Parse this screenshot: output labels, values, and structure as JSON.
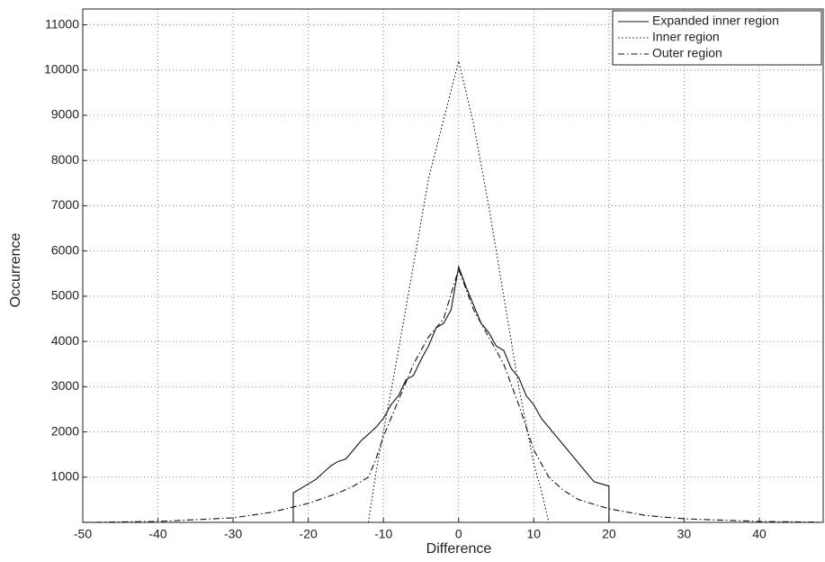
{
  "chart_data": {
    "type": "line",
    "x_label": "Difference",
    "y_label": "Occurrence",
    "xlim": [
      -50,
      48.5
    ],
    "ylim": [
      0,
      11350
    ],
    "xticks": [
      -50,
      -40,
      -30,
      -20,
      -10,
      0,
      10,
      20,
      30,
      40
    ],
    "yticks": [
      1000,
      2000,
      3000,
      4000,
      5000,
      6000,
      7000,
      8000,
      9000,
      10000,
      11000
    ],
    "grid": true,
    "legend": "upper right",
    "series": [
      {
        "name": "Expanded inner region",
        "color": "#111111",
        "linestyle": "solid",
        "x": [
          -22,
          -22,
          -21,
          -20,
          -19,
          -18,
          -17,
          -16,
          -15,
          -14,
          -13,
          -12,
          -11,
          -10,
          -9,
          -8,
          -7,
          -6,
          -5,
          -4,
          -3,
          -2,
          -1,
          0,
          1,
          2,
          3,
          4,
          5,
          6,
          7,
          8,
          9,
          10,
          11,
          12,
          13,
          14,
          15,
          16,
          17,
          18,
          19,
          20,
          20
        ],
        "values": [
          0,
          650,
          750,
          850,
          950,
          1100,
          1250,
          1350,
          1400,
          1600,
          1800,
          1950,
          2100,
          2300,
          2600,
          2800,
          3150,
          3250,
          3600,
          3900,
          4300,
          4400,
          4700,
          5650,
          5200,
          4800,
          4400,
          4200,
          3900,
          3800,
          3400,
          3200,
          2800,
          2600,
          2300,
          2100,
          1900,
          1700,
          1500,
          1300,
          1100,
          900,
          850,
          800,
          0
        ]
      },
      {
        "name": "Inner region",
        "color": "#111111",
        "linestyle": "dotted",
        "x": [
          -12,
          -11,
          -10,
          -8,
          -6,
          -4,
          -2,
          0,
          2,
          4,
          6,
          8,
          10,
          11,
          12
        ],
        "values": [
          0,
          1100,
          2000,
          3800,
          5700,
          7600,
          8900,
          10200,
          8800,
          7000,
          5000,
          3000,
          1300,
          700,
          0
        ]
      },
      {
        "name": "Outer region",
        "color": "#111111",
        "linestyle": "dashdot",
        "x": [
          -50,
          -40,
          -30,
          -25,
          -20,
          -16,
          -14,
          -12,
          -11,
          -10,
          -8,
          -6,
          -4,
          -2,
          0,
          2,
          4,
          6,
          8,
          10,
          12,
          14,
          16,
          20,
          25,
          30,
          40,
          48
        ],
        "values": [
          0,
          20,
          100,
          220,
          420,
          650,
          800,
          1000,
          1400,
          1900,
          2700,
          3500,
          4100,
          4500,
          5600,
          4700,
          4100,
          3500,
          2600,
          1600,
          1000,
          700,
          500,
          300,
          150,
          80,
          20,
          5
        ]
      }
    ]
  }
}
